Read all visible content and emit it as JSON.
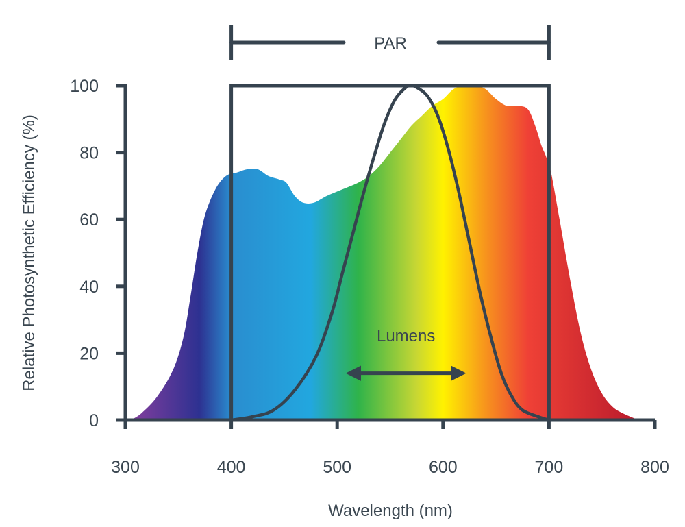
{
  "colors": {
    "ink": "#36434f",
    "text": "#3a4650",
    "spectrum": [
      "#7d3d9c",
      "#2d3191",
      "#2a8dcf",
      "#22a7df",
      "#2fb34a",
      "#c8d733",
      "#fff200",
      "#f7941d",
      "#ef4136",
      "#be1e2d"
    ]
  },
  "chart_data": {
    "type": "area",
    "title": "",
    "xlabel": "Wavelength (nm)",
    "ylabel": "Relative Photosynthetic Efficiency (%)",
    "xlim": [
      300,
      800
    ],
    "ylim": [
      0,
      100
    ],
    "x_ticks": [
      "300",
      "400",
      "500",
      "600",
      "700",
      "800"
    ],
    "y_ticks": [
      "0",
      "20",
      "40",
      "60",
      "80",
      "100"
    ],
    "grid": false,
    "series": [
      {
        "fill": "spectrum-gradient",
        "points": [
          [
            305,
            0
          ],
          [
            315,
            2
          ],
          [
            330,
            7
          ],
          [
            345,
            15
          ],
          [
            355,
            25
          ],
          [
            362,
            38
          ],
          [
            368,
            50
          ],
          [
            375,
            61
          ],
          [
            385,
            69
          ],
          [
            395,
            73
          ],
          [
            405,
            74
          ],
          [
            415,
            75
          ],
          [
            425,
            75
          ],
          [
            435,
            73
          ],
          [
            445,
            72
          ],
          [
            452,
            71
          ],
          [
            460,
            67
          ],
          [
            468,
            65
          ],
          [
            478,
            65
          ],
          [
            490,
            67
          ],
          [
            505,
            69
          ],
          [
            520,
            71
          ],
          [
            530,
            73
          ],
          [
            540,
            76
          ],
          [
            550,
            80
          ],
          [
            560,
            84
          ],
          [
            570,
            88
          ],
          [
            580,
            91
          ],
          [
            590,
            94
          ],
          [
            600,
            96
          ],
          [
            610,
            99
          ],
          [
            620,
            100
          ],
          [
            630,
            100
          ],
          [
            640,
            99
          ],
          [
            650,
            96
          ],
          [
            660,
            94
          ],
          [
            670,
            94
          ],
          [
            680,
            93
          ],
          [
            687,
            88
          ],
          [
            693,
            82
          ],
          [
            697,
            79
          ],
          [
            702,
            74
          ],
          [
            710,
            60
          ],
          [
            720,
            42
          ],
          [
            730,
            26
          ],
          [
            740,
            15
          ],
          [
            750,
            8
          ],
          [
            760,
            4
          ],
          [
            770,
            2
          ],
          [
            785,
            0
          ]
        ]
      },
      {
        "name": "Lumens",
        "fill": "none",
        "points": [
          [
            400,
            0
          ],
          [
            420,
            1
          ],
          [
            440,
            3
          ],
          [
            460,
            9
          ],
          [
            480,
            19
          ],
          [
            495,
            32
          ],
          [
            505,
            44
          ],
          [
            515,
            56
          ],
          [
            525,
            68
          ],
          [
            535,
            79
          ],
          [
            545,
            89
          ],
          [
            555,
            96
          ],
          [
            565,
            99.5
          ],
          [
            570,
            100
          ],
          [
            575,
            99.5
          ],
          [
            585,
            97
          ],
          [
            595,
            91
          ],
          [
            605,
            81
          ],
          [
            615,
            68
          ],
          [
            625,
            53
          ],
          [
            635,
            38
          ],
          [
            645,
            25
          ],
          [
            655,
            14
          ],
          [
            665,
            7
          ],
          [
            675,
            3
          ],
          [
            690,
            1
          ],
          [
            700,
            0
          ]
        ]
      }
    ],
    "annotations": [
      {
        "text": "PAR",
        "range": [
          400,
          700
        ],
        "style": "bracket-top"
      },
      {
        "text": "Lumens",
        "range": [
          510,
          620
        ],
        "y": 14,
        "style": "double-arrow"
      }
    ],
    "par_box": {
      "x0": 400,
      "x1": 700,
      "y0": 0,
      "y1": 100
    }
  }
}
